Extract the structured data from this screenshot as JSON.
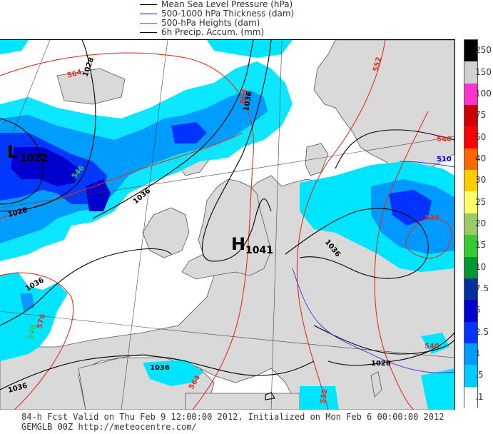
{
  "legend": {
    "items": [
      {
        "label": "Mean Sea Level Pressure (hPa)",
        "color": "#000000"
      },
      {
        "label": "500-1000 hPa Thickness (dam)",
        "color": "#0000cc"
      },
      {
        "label": "500-hPa Heights (dam)",
        "color": "#e0301e"
      },
      {
        "label": "6h Precip. Accum. (mm)",
        "color": "#000000"
      }
    ]
  },
  "colorbar": {
    "levels": [
      "250",
      "150",
      "100",
      "75",
      "50",
      "40",
      "30",
      "25",
      "20",
      "15",
      "10",
      "7.5",
      "5",
      "2.5",
      "1",
      ".5",
      ".1"
    ],
    "colors": [
      "#000000",
      "#d0d0d0",
      "#ff33cc",
      "#cc0000",
      "#ff0000",
      "#ff6600",
      "#ffcc00",
      "#ffff66",
      "#99cc66",
      "#33cc33",
      "#009933",
      "#003399",
      "#0000cc",
      "#0033ff",
      "#0099ff",
      "#00ccff",
      "#ffffff"
    ]
  },
  "map": {
    "pressure_centers": [
      {
        "letter": "L",
        "value": "1022"
      },
      {
        "letter": "H",
        "value": "1041"
      }
    ],
    "msl_labels": [
      "1028",
      "1036",
      "1036",
      "1028",
      "1036",
      "1036",
      "1036",
      "1036",
      "1028"
    ],
    "height_labels": [
      "564",
      "564",
      "552",
      "540",
      "528",
      "576",
      "564",
      "552",
      "540"
    ],
    "thickness_labels": [
      "510",
      "546",
      "546"
    ]
  },
  "footer": {
    "line1": "84-h Fcst Valid on Thu Feb  9 12:00:00 2012, Initialized on Mon Feb  6 00:00:00 2012",
    "line2": "GEMGLB 00Z http://meteocentre.com/"
  }
}
